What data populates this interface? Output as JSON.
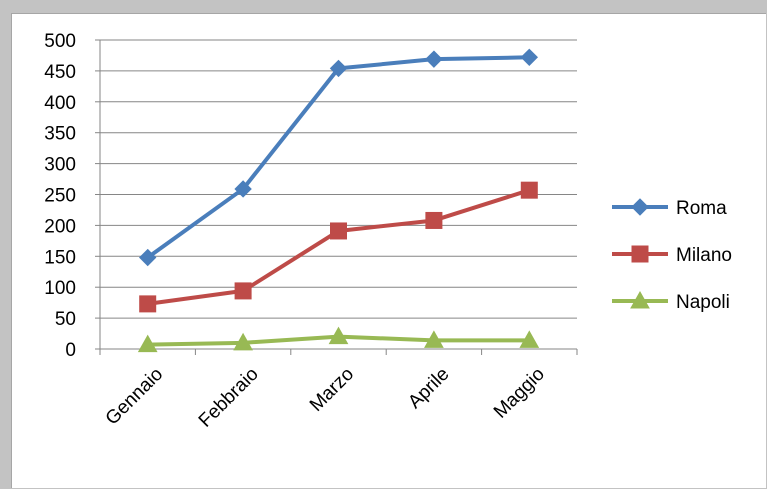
{
  "chart_data": {
    "type": "line",
    "categories": [
      "Gennaio",
      "Febbraio",
      "Marzo",
      "Aprile",
      "Maggio"
    ],
    "series": [
      {
        "name": "Roma",
        "values": [
          148,
          259,
          454,
          469,
          472
        ],
        "color": "#4a7ebb",
        "marker": "diamond"
      },
      {
        "name": "Milano",
        "values": [
          73,
          94,
          191,
          208,
          257
        ],
        "color": "#be4b48",
        "marker": "square"
      },
      {
        "name": "Napoli",
        "values": [
          7,
          10,
          20,
          14,
          14
        ],
        "color": "#98b954",
        "marker": "triangle"
      }
    ],
    "ylim": [
      0,
      500
    ],
    "yticks": [
      0,
      50,
      100,
      150,
      200,
      250,
      300,
      350,
      400,
      450,
      500
    ],
    "grid": true,
    "legend": "right",
    "xtick_rotation": -45
  }
}
